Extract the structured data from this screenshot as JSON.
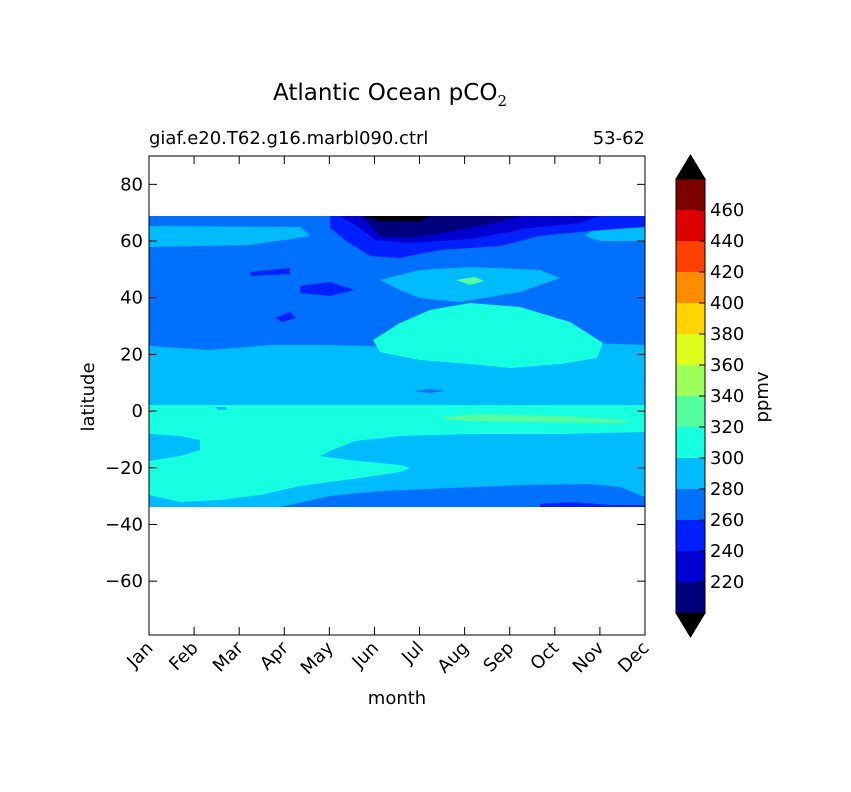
{
  "chart_data": {
    "type": "heatmap",
    "title": "Atlantic Ocean pCO",
    "title_subscript": "2",
    "subtitle_left": "giaf.e20.T62.g16.marbl090.ctrl",
    "subtitle_right": "53-62",
    "xlabel": "month",
    "ylabel": "latitude",
    "x_categories": [
      "Jan",
      "Feb",
      "Mar",
      "Apr",
      "May",
      "Jun",
      "Jul",
      "Aug",
      "Sep",
      "Oct",
      "Nov",
      "Dec"
    ],
    "y_ticks": [
      80,
      60,
      40,
      20,
      0,
      -20,
      -40,
      -60
    ],
    "y_tick_labels": [
      "80",
      "60",
      "40",
      "20",
      "0",
      "−20",
      "−40",
      "−60"
    ],
    "ylim": [
      -79,
      90
    ],
    "data_lat_range": [
      -34,
      68
    ],
    "colorbar": {
      "label": "ppmv",
      "levels": [
        200,
        220,
        240,
        260,
        280,
        300,
        320,
        340,
        360,
        380,
        400,
        420,
        440,
        460,
        480
      ],
      "tick_labels": [
        "220",
        "240",
        "260",
        "280",
        "300",
        "320",
        "340",
        "360",
        "380",
        "400",
        "420",
        "440",
        "460"
      ],
      "colors": [
        "#00007f",
        "#0000d0",
        "#0020ff",
        "#0070ff",
        "#00bcff",
        "#16ffe1",
        "#55ff9f",
        "#9dff5a",
        "#ddff1a",
        "#ffd400",
        "#ff8c00",
        "#ff4000",
        "#dc0000",
        "#7f0000"
      ],
      "under_color": "#000000",
      "over_color": "#000000"
    },
    "regions_description": [
      {
        "level": 280,
        "lat": [
          23,
          65
        ],
        "months": "Jan-Dec"
      },
      {
        "level": 300,
        "lat": [
          -34,
          23
        ],
        "months": "Jan-Dec"
      },
      {
        "level": 320,
        "lat": [
          -28,
          2
        ],
        "months": "Jan-Jul"
      },
      {
        "level": 320,
        "lat": [
          16,
          37
        ],
        "months": "Jul-Sep"
      },
      {
        "level": 200,
        "lat": [
          62,
          68
        ],
        "months": "Jun-Jul"
      }
    ]
  }
}
